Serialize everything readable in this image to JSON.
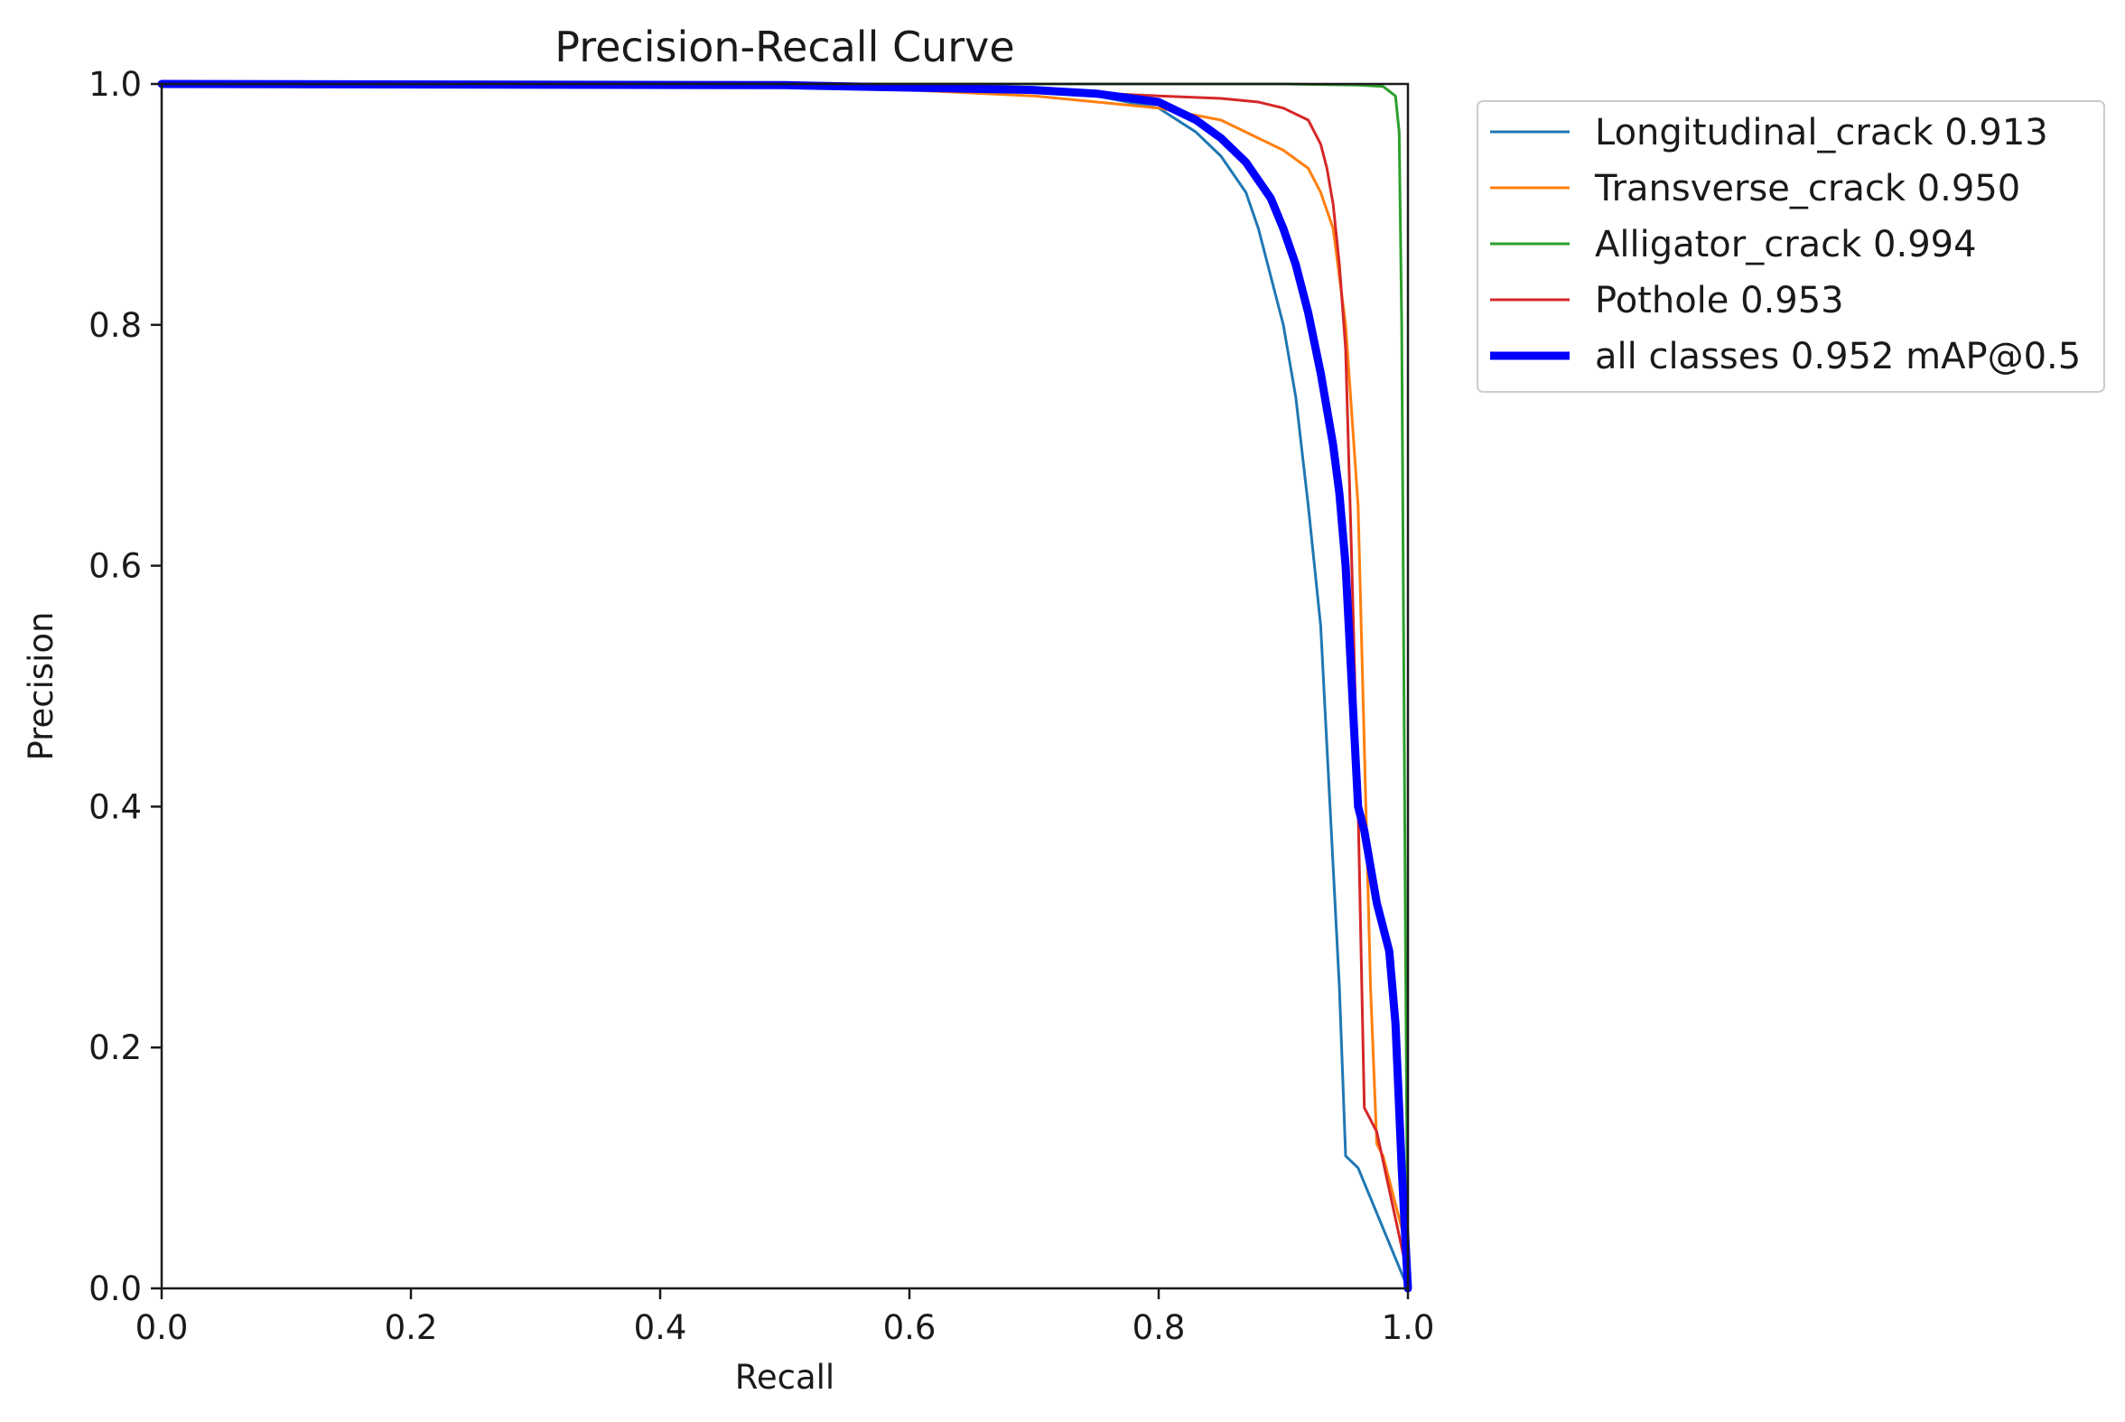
{
  "chart_data": {
    "type": "line",
    "title": "Precision-Recall Curve",
    "xlabel": "Recall",
    "ylabel": "Precision",
    "xlim": [
      0,
      1
    ],
    "ylim": [
      0,
      1
    ],
    "grid": false,
    "legend_position": "outside-top-right",
    "x_ticks": [
      "0.0",
      "0.2",
      "0.4",
      "0.6",
      "0.8",
      "1.0"
    ],
    "y_ticks": [
      "0.0",
      "0.2",
      "0.4",
      "0.6",
      "0.8",
      "1.0"
    ],
    "series": [
      {
        "name": "Longitudinal_crack 0.913",
        "color": "#1f77b4",
        "x": [
          0,
          0.5,
          0.7,
          0.75,
          0.8,
          0.83,
          0.85,
          0.87,
          0.88,
          0.89,
          0.9,
          0.91,
          0.92,
          0.93,
          0.935,
          0.94,
          0.945,
          0.95,
          0.96,
          1.0
        ],
        "y": [
          1.0,
          0.999,
          0.995,
          0.99,
          0.98,
          0.96,
          0.94,
          0.91,
          0.88,
          0.84,
          0.8,
          0.74,
          0.65,
          0.55,
          0.45,
          0.35,
          0.25,
          0.11,
          0.1,
          0.0
        ]
      },
      {
        "name": "Transverse_crack 0.950",
        "color": "#ff7f0e",
        "x": [
          0,
          0.5,
          0.6,
          0.7,
          0.8,
          0.85,
          0.88,
          0.9,
          0.92,
          0.93,
          0.94,
          0.95,
          0.96,
          0.965,
          0.97,
          0.975,
          0.98,
          1.0
        ],
        "y": [
          1.0,
          0.998,
          0.995,
          0.99,
          0.98,
          0.97,
          0.955,
          0.945,
          0.93,
          0.91,
          0.88,
          0.8,
          0.65,
          0.45,
          0.25,
          0.12,
          0.11,
          0.03
        ]
      },
      {
        "name": "Alligator_crack 0.994",
        "color": "#2ca02c",
        "x": [
          0,
          0.9,
          0.96,
          0.98,
          0.99,
          0.993,
          0.995,
          0.998,
          1.0
        ],
        "y": [
          1.0,
          1.0,
          0.999,
          0.998,
          0.99,
          0.96,
          0.8,
          0.3,
          0.0
        ]
      },
      {
        "name": "Pothole 0.953",
        "color": "#d62728",
        "x": [
          0,
          0.5,
          0.7,
          0.8,
          0.85,
          0.88,
          0.9,
          0.92,
          0.93,
          0.935,
          0.94,
          0.945,
          0.95,
          0.955,
          0.96,
          0.965,
          0.97,
          0.975,
          1.0
        ],
        "y": [
          1.0,
          0.998,
          0.995,
          0.99,
          0.988,
          0.985,
          0.98,
          0.97,
          0.95,
          0.93,
          0.9,
          0.85,
          0.78,
          0.6,
          0.4,
          0.15,
          0.14,
          0.13,
          0.01
        ]
      },
      {
        "name": "all classes 0.952 mAP@0.5",
        "color": "#0000ff",
        "x": [
          0,
          0.5,
          0.6,
          0.7,
          0.75,
          0.8,
          0.83,
          0.85,
          0.87,
          0.89,
          0.9,
          0.91,
          0.92,
          0.93,
          0.94,
          0.945,
          0.95,
          0.955,
          0.96,
          0.965,
          0.97,
          0.975,
          0.98,
          0.985,
          0.99,
          0.995,
          1.0
        ],
        "y": [
          1.0,
          0.999,
          0.997,
          0.995,
          0.992,
          0.985,
          0.97,
          0.955,
          0.935,
          0.905,
          0.88,
          0.85,
          0.81,
          0.76,
          0.7,
          0.66,
          0.6,
          0.5,
          0.4,
          0.38,
          0.35,
          0.32,
          0.3,
          0.28,
          0.22,
          0.1,
          0.0
        ]
      }
    ]
  }
}
